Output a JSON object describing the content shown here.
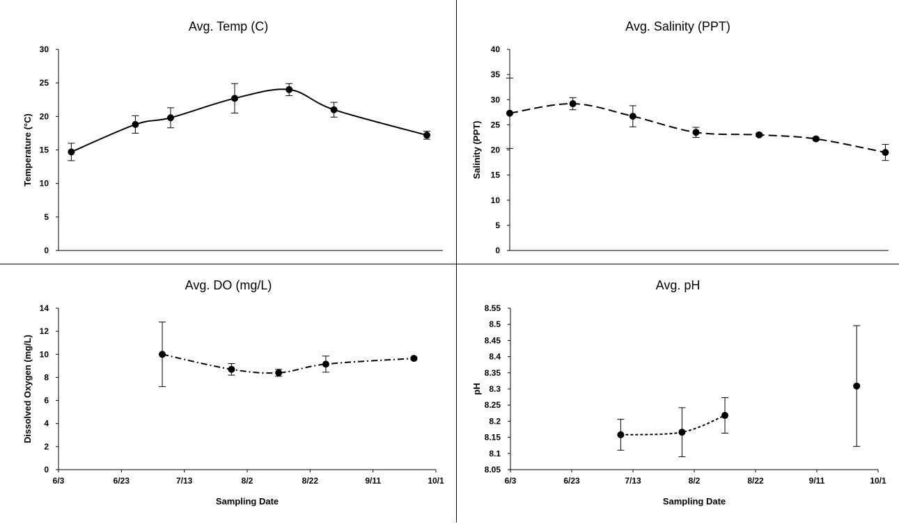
{
  "chart_data": [
    {
      "id": "temp",
      "type": "line",
      "title": "Avg. Temp (C)",
      "ylabel": "Temperature (°C)",
      "xlabel": "",
      "ylim": [
        0,
        30
      ],
      "yticks": [
        "0",
        "5",
        "10",
        "15",
        "20",
        "25",
        "30"
      ],
      "xlim": [
        "2023-06-03",
        "2023-10-01"
      ],
      "xticks": [],
      "line_style": "solid",
      "series": [
        {
          "x": [
            "2023-06-07",
            "2023-06-27",
            "2023-07-08",
            "2023-07-28",
            "2023-08-14",
            "2023-08-28",
            "2023-09-26"
          ],
          "y": [
            14.7,
            18.8,
            19.8,
            22.7,
            24.0,
            21.0,
            17.2
          ],
          "err": [
            1.3,
            1.3,
            1.5,
            2.2,
            0.9,
            1.1,
            0.6
          ]
        }
      ]
    },
    {
      "id": "salinity",
      "type": "line",
      "title": "Avg. Salinity (PPT)",
      "ylabel": "Salinity (PPT)",
      "xlabel": "",
      "ylim": [
        0,
        40
      ],
      "yticks": [
        "0",
        "5",
        "10",
        "15",
        "20",
        "25",
        "30",
        "35",
        "40"
      ],
      "xlim": [
        "2023-06-03",
        "2023-10-01"
      ],
      "xticks": [],
      "line_style": "dashed",
      "series": [
        {
          "x": [
            "2023-06-03",
            "2023-06-23",
            "2023-07-12",
            "2023-08-01",
            "2023-08-21",
            "2023-09-08",
            "2023-09-30"
          ],
          "y": [
            27.3,
            29.2,
            26.7,
            23.5,
            23.0,
            22.2,
            19.5
          ],
          "err": [
            7.0,
            1.2,
            2.1,
            1.0,
            0.3,
            0.3,
            1.6
          ]
        }
      ]
    },
    {
      "id": "do",
      "type": "line",
      "title": "Avg. DO (mg/L)",
      "ylabel": "Dissolved Oxygen (mg/L)",
      "xlabel": "Sampling Date",
      "ylim": [
        0,
        14
      ],
      "yticks": [
        "0",
        "2",
        "4",
        "6",
        "8",
        "10",
        "12",
        "14"
      ],
      "xlim": [
        "2023-06-03",
        "2023-10-01"
      ],
      "xticks": [
        "6/3",
        "6/23",
        "7/13",
        "8/2",
        "8/22",
        "9/11",
        "10/1"
      ],
      "line_style": "dashdot",
      "series": [
        {
          "x": [
            "2023-07-06",
            "2023-07-28",
            "2023-08-12",
            "2023-08-27",
            "2023-09-24"
          ],
          "y": [
            10.0,
            8.7,
            8.4,
            9.15,
            9.65
          ],
          "err": [
            2.8,
            0.5,
            0.3,
            0.7,
            0.1
          ]
        }
      ]
    },
    {
      "id": "ph",
      "type": "line",
      "title": "Avg. pH",
      "ylabel": "pH",
      "xlabel": "Sampling Date",
      "ylim": [
        8.05,
        8.55
      ],
      "yticks": [
        "8.05",
        "8.1",
        "8.15",
        "8.2",
        "8.25",
        "8.3",
        "8.35",
        "8.4",
        "8.45",
        "8.5",
        "8.55"
      ],
      "xlim": [
        "2023-06-03",
        "2023-10-01"
      ],
      "xticks": [
        "6/3",
        "6/23",
        "7/13",
        "8/2",
        "8/22",
        "9/11",
        "10/1"
      ],
      "line_style": "dotted",
      "series": [
        {
          "x": [
            "2023-07-09",
            "2023-07-29",
            "2023-08-12"
          ],
          "y": [
            8.158,
            8.166,
            8.218
          ],
          "err": [
            0.048,
            0.076,
            0.055
          ],
          "connected": true
        },
        {
          "x": [
            "2023-09-24"
          ],
          "y": [
            8.309
          ],
          "err": [
            0.187
          ],
          "connected": false
        }
      ]
    }
  ]
}
